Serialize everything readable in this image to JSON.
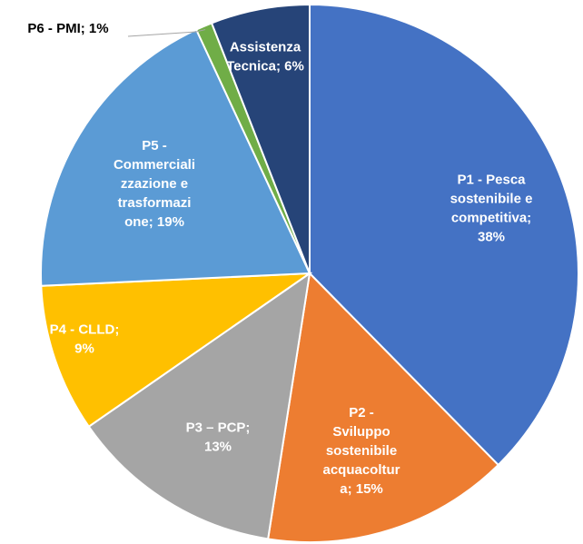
{
  "chart_data": {
    "type": "pie",
    "values": [
      38,
      15,
      13,
      9,
      19,
      1,
      6
    ],
    "value_labels": [
      "P1 - Pesca sostenibile e competitiva; 38%",
      "P2 - Sviluppo sostenibile acquacoltura; 15%",
      "P3 – PCP; 13%",
      "P4 -  CLLD; 9%",
      "P5 - Commercializzazione e trasformazione; 19%",
      "P6 - PMI; 1%",
      "Assistenza Tecnica; 6%"
    ],
    "colors": [
      "#4472c4",
      "#ed7d31",
      "#a5a5a5",
      "#ffc000",
      "#5b9bd5",
      "#70ad47",
      "#264478"
    ]
  }
}
